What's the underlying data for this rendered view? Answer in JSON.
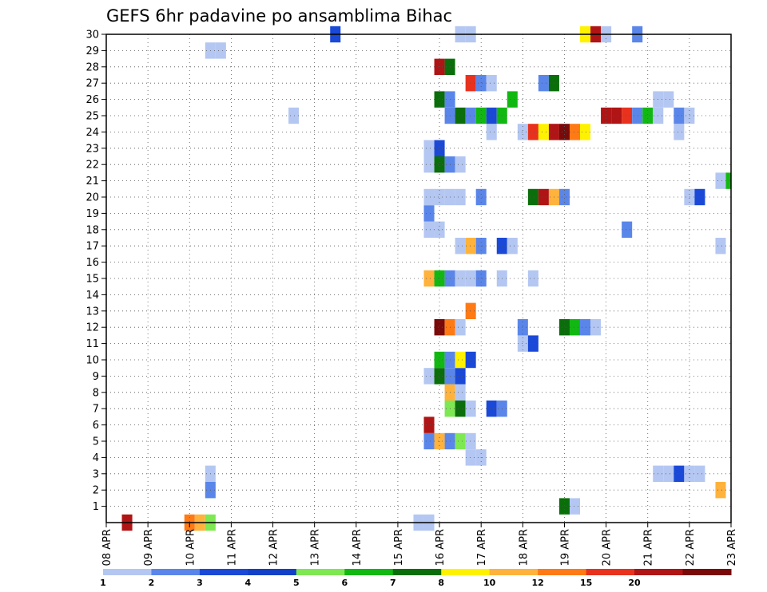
{
  "chart_data": {
    "type": "heatmap",
    "title": "GEFS 6hr padavine po ansamblima Bihac",
    "x_tick_labels": [
      "08 APR",
      "09 APR",
      "10 APR",
      "11 APR",
      "12 APR",
      "13 APR",
      "14 APR",
      "15 APR",
      "16 APR",
      "17 APR",
      "18 APR",
      "19 APR",
      "20 APR",
      "21 APR",
      "22 APR",
      "23 APR"
    ],
    "y_tick_labels": [
      "1",
      "2",
      "3",
      "4",
      "5",
      "6",
      "7",
      "8",
      "9",
      "10",
      "11",
      "12",
      "13",
      "14",
      "15",
      "16",
      "17",
      "18",
      "19",
      "20",
      "21",
      "22",
      "23",
      "24",
      "25",
      "26",
      "27",
      "28",
      "29",
      "30"
    ],
    "x_range_steps": [
      0,
      60
    ],
    "y_range": [
      0,
      30
    ],
    "steps_per_day": 4,
    "grid": true,
    "colorbar": {
      "colors": [
        "#b4c7f2",
        "#5a86ea",
        "#1a49d8",
        "#1240c6",
        "#7ee852",
        "#12b812",
        "#0a6e0a",
        "#fff200",
        "#ffb23c",
        "#ff7a14",
        "#e8321e",
        "#b01414",
        "#7a0a0a"
      ],
      "labels": [
        "1",
        "2",
        "3",
        "4",
        "5",
        "6",
        "7",
        "8",
        "10",
        "12",
        "15",
        "20"
      ]
    },
    "cells": [
      [
        0,
        2,
        "#b01414"
      ],
      [
        0,
        8,
        "#ff7a14"
      ],
      [
        0,
        9,
        "#ffb23c"
      ],
      [
        0,
        10,
        "#7ee852"
      ],
      [
        0,
        30,
        "#b4c7f2"
      ],
      [
        0,
        31,
        "#b4c7f2"
      ],
      [
        1,
        44,
        "#0a6e0a"
      ],
      [
        1,
        45,
        "#b4c7f2"
      ],
      [
        2,
        10,
        "#5a86ea"
      ],
      [
        2,
        59,
        "#ffb23c"
      ],
      [
        3,
        10,
        "#b4c7f2"
      ],
      [
        3,
        53,
        "#b4c7f2"
      ],
      [
        3,
        54,
        "#b4c7f2"
      ],
      [
        3,
        55,
        "#1a49d8"
      ],
      [
        3,
        56,
        "#b4c7f2"
      ],
      [
        3,
        57,
        "#b4c7f2"
      ],
      [
        4,
        35,
        "#b4c7f2"
      ],
      [
        4,
        36,
        "#b4c7f2"
      ],
      [
        5,
        31,
        "#5a86ea"
      ],
      [
        5,
        32,
        "#ffb23c"
      ],
      [
        5,
        33,
        "#5a86ea"
      ],
      [
        5,
        34,
        "#7ee852"
      ],
      [
        5,
        35,
        "#b4c7f2"
      ],
      [
        6,
        31,
        "#b01414"
      ],
      [
        7,
        33,
        "#7ee852"
      ],
      [
        7,
        34,
        "#0a6e0a"
      ],
      [
        7,
        35,
        "#b4c7f2"
      ],
      [
        7,
        37,
        "#1a49d8"
      ],
      [
        7,
        38,
        "#5a86ea"
      ],
      [
        8,
        33,
        "#ffb23c"
      ],
      [
        8,
        34,
        "#b4c7f2"
      ],
      [
        9,
        31,
        "#b4c7f2"
      ],
      [
        9,
        32,
        "#0a6e0a"
      ],
      [
        9,
        33,
        "#5a86ea"
      ],
      [
        9,
        34,
        "#1a49d8"
      ],
      [
        10,
        32,
        "#12b812"
      ],
      [
        10,
        33,
        "#5a86ea"
      ],
      [
        10,
        34,
        "#fff200"
      ],
      [
        10,
        35,
        "#1a49d8"
      ],
      [
        11,
        40,
        "#b4c7f2"
      ],
      [
        11,
        41,
        "#1a49d8"
      ],
      [
        12,
        32,
        "#7a0a0a"
      ],
      [
        12,
        33,
        "#ff7a14"
      ],
      [
        12,
        34,
        "#b4c7f2"
      ],
      [
        12,
        40,
        "#5a86ea"
      ],
      [
        12,
        44,
        "#0a6e0a"
      ],
      [
        12,
        45,
        "#12b812"
      ],
      [
        12,
        46,
        "#5a86ea"
      ],
      [
        12,
        47,
        "#b4c7f2"
      ],
      [
        13,
        35,
        "#ff7a14"
      ],
      [
        15,
        31,
        "#ffb23c"
      ],
      [
        15,
        32,
        "#12b812"
      ],
      [
        15,
        33,
        "#5a86ea"
      ],
      [
        15,
        34,
        "#b4c7f2"
      ],
      [
        15,
        35,
        "#b4c7f2"
      ],
      [
        15,
        36,
        "#5a86ea"
      ],
      [
        15,
        38,
        "#b4c7f2"
      ],
      [
        15,
        41,
        "#b4c7f2"
      ],
      [
        17,
        34,
        "#b4c7f2"
      ],
      [
        17,
        35,
        "#ffb23c"
      ],
      [
        17,
        36,
        "#5a86ea"
      ],
      [
        17,
        38,
        "#1a49d8"
      ],
      [
        17,
        39,
        "#b4c7f2"
      ],
      [
        17,
        59,
        "#b4c7f2"
      ],
      [
        18,
        31,
        "#b4c7f2"
      ],
      [
        18,
        32,
        "#b4c7f2"
      ],
      [
        18,
        50,
        "#5a86ea"
      ],
      [
        19,
        31,
        "#5a86ea"
      ],
      [
        20,
        31,
        "#b4c7f2"
      ],
      [
        20,
        32,
        "#b4c7f2"
      ],
      [
        20,
        33,
        "#b4c7f2"
      ],
      [
        20,
        34,
        "#b4c7f2"
      ],
      [
        20,
        36,
        "#5a86ea"
      ],
      [
        20,
        41,
        "#0a6e0a"
      ],
      [
        20,
        42,
        "#b01414"
      ],
      [
        20,
        43,
        "#ffb23c"
      ],
      [
        20,
        44,
        "#5a86ea"
      ],
      [
        20,
        56,
        "#b4c7f2"
      ],
      [
        20,
        57,
        "#1a49d8"
      ],
      [
        21,
        59,
        "#b4c7f2"
      ],
      [
        21,
        60,
        "#12b812"
      ],
      [
        22,
        31,
        "#b4c7f2"
      ],
      [
        22,
        32,
        "#0a6e0a"
      ],
      [
        22,
        33,
        "#5a86ea"
      ],
      [
        22,
        34,
        "#b4c7f2"
      ],
      [
        23,
        31,
        "#b4c7f2"
      ],
      [
        23,
        32,
        "#1a49d8"
      ],
      [
        24,
        37,
        "#b4c7f2"
      ],
      [
        24,
        40,
        "#b4c7f2"
      ],
      [
        24,
        41,
        "#e8321e"
      ],
      [
        24,
        42,
        "#fff200"
      ],
      [
        24,
        43,
        "#b01414"
      ],
      [
        24,
        44,
        "#7a0a0a"
      ],
      [
        24,
        45,
        "#ff7a14"
      ],
      [
        24,
        46,
        "#fff200"
      ],
      [
        24,
        55,
        "#b4c7f2"
      ],
      [
        25,
        18,
        "#b4c7f2"
      ],
      [
        25,
        33,
        "#5a86ea"
      ],
      [
        25,
        34,
        "#0a6e0a"
      ],
      [
        25,
        35,
        "#5a86ea"
      ],
      [
        25,
        36,
        "#12b812"
      ],
      [
        25,
        37,
        "#1a49d8"
      ],
      [
        25,
        38,
        "#12b812"
      ],
      [
        25,
        48,
        "#b01414"
      ],
      [
        25,
        49,
        "#b01414"
      ],
      [
        25,
        50,
        "#e8321e"
      ],
      [
        25,
        51,
        "#5a86ea"
      ],
      [
        25,
        52,
        "#12b812"
      ],
      [
        25,
        53,
        "#b4c7f2"
      ],
      [
        25,
        55,
        "#5a86ea"
      ],
      [
        25,
        56,
        "#b4c7f2"
      ],
      [
        26,
        32,
        "#0a6e0a"
      ],
      [
        26,
        33,
        "#5a86ea"
      ],
      [
        26,
        39,
        "#12b812"
      ],
      [
        26,
        53,
        "#b4c7f2"
      ],
      [
        26,
        54,
        "#b4c7f2"
      ],
      [
        27,
        35,
        "#e8321e"
      ],
      [
        27,
        36,
        "#5a86ea"
      ],
      [
        27,
        37,
        "#b4c7f2"
      ],
      [
        27,
        42,
        "#5a86ea"
      ],
      [
        27,
        43,
        "#0a6e0a"
      ],
      [
        28,
        32,
        "#b01414"
      ],
      [
        28,
        33,
        "#0a6e0a"
      ],
      [
        29,
        10,
        "#b4c7f2"
      ],
      [
        29,
        11,
        "#b4c7f2"
      ],
      [
        30,
        22,
        "#1a49d8"
      ],
      [
        30,
        34,
        "#b4c7f2"
      ],
      [
        30,
        35,
        "#b4c7f2"
      ],
      [
        30,
        46,
        "#fff200"
      ],
      [
        30,
        47,
        "#b01414"
      ],
      [
        30,
        48,
        "#b4c7f2"
      ],
      [
        30,
        51,
        "#5a86ea"
      ]
    ]
  }
}
